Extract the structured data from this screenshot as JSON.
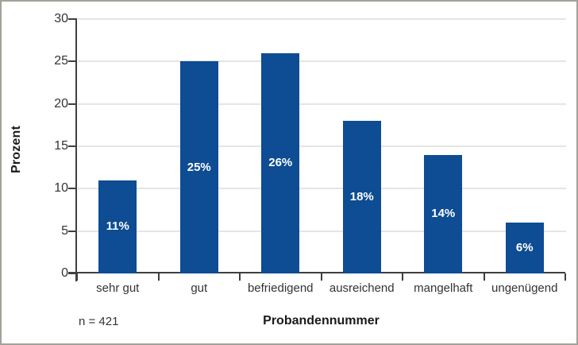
{
  "frame": {
    "border_color": "#a3a29a",
    "background_color": "#ffffff"
  },
  "chart_data": {
    "type": "bar",
    "title": "",
    "categories": [
      "sehr gut",
      "gut",
      "befriedigend",
      "ausreichend",
      "mangelhaft",
      "ungenügend"
    ],
    "values": [
      11,
      25,
      26,
      18,
      14,
      6
    ],
    "bar_labels": [
      "11%",
      "25%",
      "26%",
      "18%",
      "14%",
      "6%"
    ],
    "xlabel": "Probandennummer",
    "ylabel": "Prozent",
    "note": "n = 421",
    "ylim": [
      0,
      30
    ],
    "yticks": [
      0,
      5,
      10,
      15,
      20,
      25,
      30
    ],
    "grid": "horizontal",
    "legend": "none",
    "bar_color": "#0e4c93",
    "bar_label_color": "#ffffff",
    "grid_color": "#e5e5e3",
    "axis_color": "#3f3f3f",
    "text_color": "#333333"
  }
}
